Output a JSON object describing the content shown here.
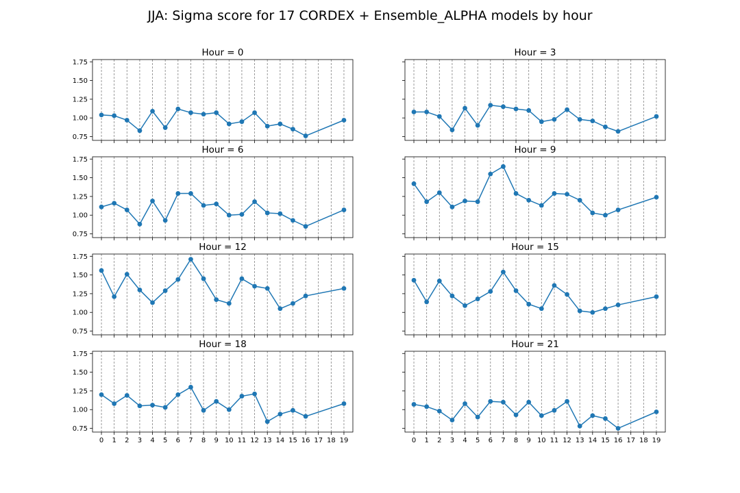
{
  "chart_data": {
    "title": "JJA: Sigma score for 17 CORDEX + Ensemble_ALPHA models by hour",
    "type": "line",
    "ylim": [
      0.7,
      1.78
    ],
    "yticks": [
      "0.75",
      "1.00",
      "1.25",
      "1.50",
      "1.75"
    ],
    "xlim": [
      -0.7,
      19.7
    ],
    "xticks": [
      0,
      1,
      2,
      3,
      4,
      5,
      6,
      7,
      8,
      9,
      10,
      11,
      12,
      13,
      14,
      15,
      16,
      17,
      18,
      19
    ],
    "grid": "x-only, dashed",
    "colors": {
      "series": "#1f77b4",
      "grid": "#808080"
    },
    "panels": [
      {
        "title": "Hour = 0",
        "x": [
          0,
          1,
          2,
          3,
          4,
          5,
          6,
          7,
          8,
          9,
          10,
          11,
          12,
          13,
          14,
          15,
          16,
          19
        ],
        "values": [
          1.04,
          1.03,
          0.97,
          0.83,
          1.09,
          0.87,
          1.12,
          1.07,
          1.05,
          1.07,
          0.92,
          0.95,
          1.07,
          0.89,
          0.92,
          0.85,
          0.76,
          0.97
        ]
      },
      {
        "title": "Hour = 3",
        "x": [
          0,
          1,
          2,
          3,
          4,
          5,
          6,
          7,
          8,
          9,
          10,
          11,
          12,
          13,
          14,
          15,
          16,
          19
        ],
        "values": [
          1.08,
          1.08,
          1.02,
          0.84,
          1.13,
          0.9,
          1.17,
          1.15,
          1.12,
          1.1,
          0.95,
          0.98,
          1.11,
          0.98,
          0.96,
          0.88,
          0.82,
          1.02
        ]
      },
      {
        "title": "Hour = 6",
        "x": [
          0,
          1,
          2,
          3,
          4,
          5,
          6,
          7,
          8,
          9,
          10,
          11,
          12,
          13,
          14,
          15,
          16,
          19
        ],
        "values": [
          1.11,
          1.16,
          1.07,
          0.88,
          1.19,
          0.93,
          1.29,
          1.29,
          1.13,
          1.15,
          1.0,
          1.01,
          1.18,
          1.03,
          1.02,
          0.93,
          0.85,
          1.07
        ]
      },
      {
        "title": "Hour = 9",
        "x": [
          0,
          1,
          2,
          3,
          4,
          5,
          6,
          7,
          8,
          9,
          10,
          11,
          12,
          13,
          14,
          15,
          16,
          19
        ],
        "values": [
          1.42,
          1.18,
          1.3,
          1.11,
          1.19,
          1.18,
          1.55,
          1.65,
          1.29,
          1.2,
          1.13,
          1.29,
          1.28,
          1.2,
          1.03,
          1.0,
          1.07,
          1.24
        ]
      },
      {
        "title": "Hour = 12",
        "x": [
          0,
          1,
          2,
          3,
          4,
          5,
          6,
          7,
          8,
          9,
          10,
          11,
          12,
          13,
          14,
          15,
          16,
          19
        ],
        "values": [
          1.56,
          1.21,
          1.51,
          1.3,
          1.13,
          1.29,
          1.44,
          1.71,
          1.45,
          1.17,
          1.12,
          1.45,
          1.35,
          1.32,
          1.05,
          1.12,
          1.22,
          1.32
        ]
      },
      {
        "title": "Hour = 15",
        "x": [
          0,
          1,
          2,
          3,
          4,
          5,
          6,
          7,
          8,
          9,
          10,
          11,
          12,
          13,
          14,
          15,
          16,
          19
        ],
        "values": [
          1.43,
          1.14,
          1.42,
          1.22,
          1.09,
          1.18,
          1.28,
          1.54,
          1.29,
          1.11,
          1.05,
          1.36,
          1.24,
          1.02,
          1.0,
          1.05,
          1.1,
          1.21
        ]
      },
      {
        "title": "Hour = 18",
        "x": [
          0,
          1,
          2,
          3,
          4,
          5,
          6,
          7,
          8,
          9,
          10,
          11,
          12,
          13,
          14,
          15,
          16,
          19
        ],
        "values": [
          1.2,
          1.08,
          1.19,
          1.05,
          1.06,
          1.03,
          1.2,
          1.3,
          0.99,
          1.11,
          1.0,
          1.18,
          1.21,
          0.84,
          0.94,
          0.99,
          0.91,
          1.08
        ]
      },
      {
        "title": "Hour = 21",
        "x": [
          0,
          1,
          2,
          3,
          4,
          5,
          6,
          7,
          8,
          9,
          10,
          11,
          12,
          13,
          14,
          15,
          16,
          19
        ],
        "values": [
          1.07,
          1.04,
          0.98,
          0.86,
          1.08,
          0.9,
          1.11,
          1.1,
          0.93,
          1.1,
          0.92,
          0.99,
          1.11,
          0.78,
          0.92,
          0.88,
          0.75,
          0.97
        ]
      }
    ]
  }
}
